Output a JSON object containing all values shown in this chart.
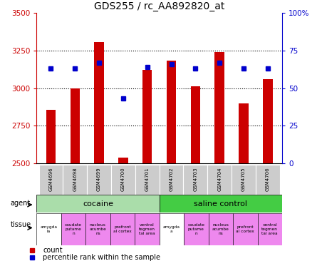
{
  "title": "GDS255 / rc_AA892820_at",
  "samples": [
    "GSM4696",
    "GSM4698",
    "GSM4699",
    "GSM4700",
    "GSM4701",
    "GSM4702",
    "GSM4703",
    "GSM4704",
    "GSM4705",
    "GSM4706"
  ],
  "counts": [
    2855,
    3000,
    3305,
    2535,
    3120,
    3185,
    3010,
    3240,
    2900,
    3060
  ],
  "percentiles": [
    63,
    63,
    67,
    43,
    64,
    66,
    63,
    67,
    63,
    63
  ],
  "ylim_left": [
    2500,
    3500
  ],
  "ylim_right": [
    0,
    100
  ],
  "yticks_left": [
    2500,
    2750,
    3000,
    3250,
    3500
  ],
  "yticks_right": [
    0,
    25,
    50,
    75,
    100
  ],
  "ytick_labels_right": [
    "0",
    "25",
    "50",
    "75",
    "100%"
  ],
  "bar_color": "#cc0000",
  "dot_color": "#0000cc",
  "agent_bg_cocaine": "#aaddaa",
  "agent_bg_saline": "#44cc44",
  "tissue_labels": [
    "amygda\nla",
    "caudate\nputame\nn",
    "nucleus\nacumbe\nns",
    "prefront\nal cortex",
    "ventral\ntegmen\ntal area",
    "amygda\na",
    "caudate\nputame\nn",
    "nucleus\nacumbe\nns",
    "prefront\nal cortex",
    "ventral\ntegmen\ntal area"
  ],
  "tissue_colors": [
    "#ffffff",
    "#ee88ee",
    "#ee88ee",
    "#ee88ee",
    "#ee88ee",
    "#ffffff",
    "#ee88ee",
    "#ee88ee",
    "#ee88ee",
    "#ee88ee"
  ],
  "sample_bg": "#cccccc",
  "grid_color": "#000000",
  "grid_style": "dotted",
  "bar_width": 0.4
}
